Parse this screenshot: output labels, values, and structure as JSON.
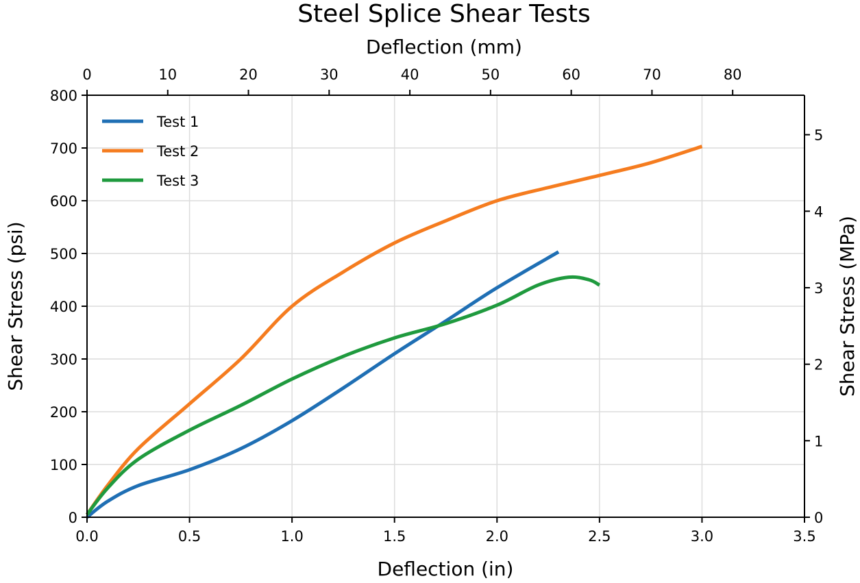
{
  "chart_data": {
    "type": "line",
    "title": "Steel Splice Shear Tests",
    "xlabel": "Deflection (in)",
    "ylabel": "Shear Stress (psi)",
    "x2label": "Deflection (mm)",
    "y2label": "Shear Stress (MPa)",
    "xlim": [
      0,
      3.5
    ],
    "ylim": [
      0,
      800
    ],
    "x2lim": [
      0,
      88.9
    ],
    "y2lim": [
      0,
      5.516
    ],
    "xticks": [
      "0.0",
      "0.5",
      "1.0",
      "1.5",
      "2.0",
      "2.5",
      "3.0",
      "3.5"
    ],
    "xtick_values": [
      0,
      0.5,
      1.0,
      1.5,
      2.0,
      2.5,
      3.0,
      3.5
    ],
    "yticks": [
      "0",
      "100",
      "200",
      "300",
      "400",
      "500",
      "600",
      "700",
      "800"
    ],
    "ytick_values": [
      0,
      100,
      200,
      300,
      400,
      500,
      600,
      700,
      800
    ],
    "x2ticks": [
      "0",
      "10",
      "20",
      "30",
      "40",
      "50",
      "60",
      "70",
      "80"
    ],
    "x2tick_values": [
      0,
      10,
      20,
      30,
      40,
      50,
      60,
      70,
      80
    ],
    "y2ticks": [
      "0",
      "1",
      "2",
      "3",
      "4",
      "5"
    ],
    "y2tick_values": [
      0,
      1,
      2,
      3,
      4,
      5
    ],
    "grid": true,
    "legend_position": "top-left",
    "series": [
      {
        "name": "Test 1",
        "color": "#1f6fb4",
        "x": [
          0,
          0.1,
          0.25,
          0.5,
          0.75,
          1.0,
          1.25,
          1.5,
          1.75,
          2.0,
          2.3
        ],
        "y": [
          0,
          30,
          60,
          90,
          130,
          183,
          245,
          310,
          372,
          435,
          503
        ]
      },
      {
        "name": "Test 2",
        "color": "#f57c1f",
        "x": [
          0,
          0.1,
          0.25,
          0.5,
          0.75,
          1.0,
          1.25,
          1.5,
          1.75,
          2.0,
          2.25,
          2.5,
          2.75,
          3.0
        ],
        "y": [
          5,
          60,
          130,
          215,
          300,
          400,
          465,
          520,
          562,
          600,
          625,
          648,
          672,
          703
        ]
      },
      {
        "name": "Test 3",
        "color": "#1f9a3e",
        "x": [
          0,
          0.1,
          0.25,
          0.5,
          0.75,
          1.0,
          1.25,
          1.5,
          1.75,
          2.0,
          2.2,
          2.35,
          2.45,
          2.5
        ],
        "y": [
          5,
          55,
          110,
          165,
          212,
          262,
          305,
          340,
          367,
          402,
          440,
          455,
          450,
          440
        ]
      }
    ]
  }
}
